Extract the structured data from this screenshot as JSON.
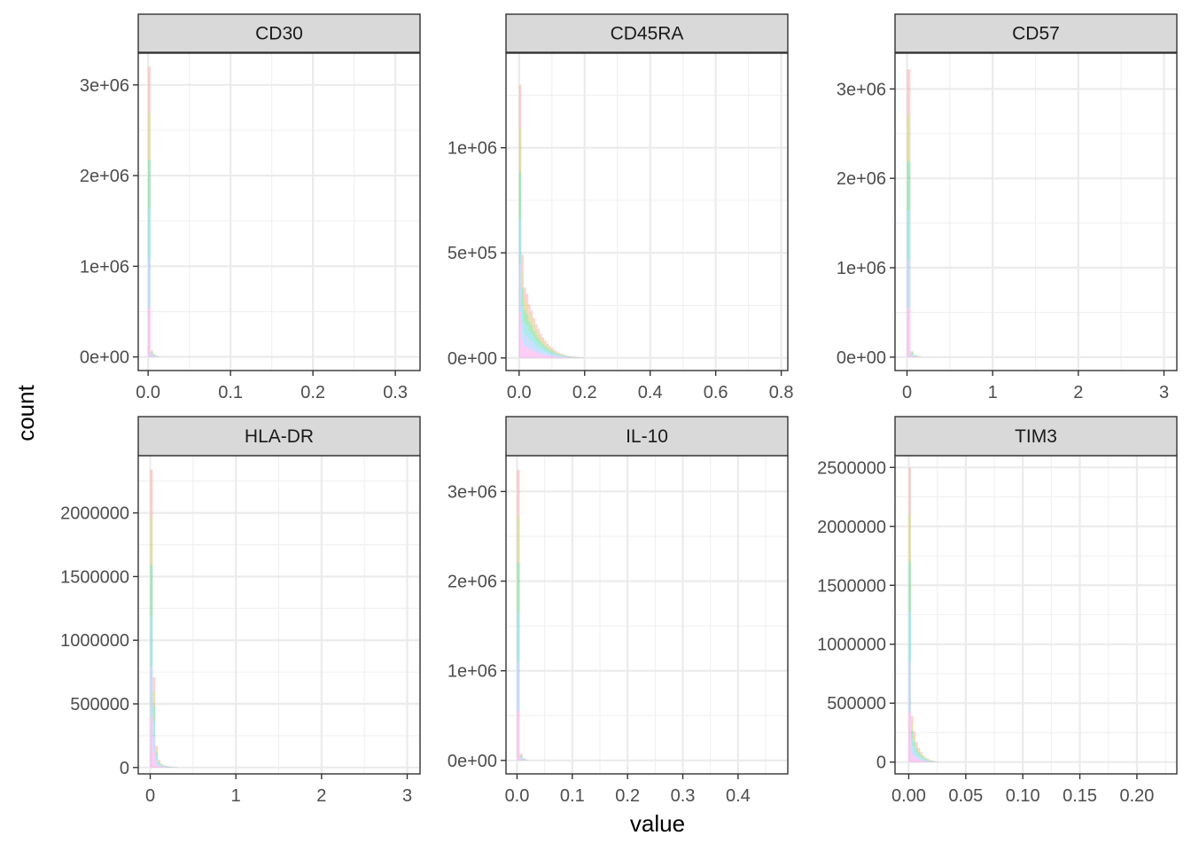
{
  "chart_data": {
    "type": "histogram",
    "xlabel": "value",
    "ylabel": "count",
    "grid": true,
    "facet_layout": "3 columns x 2 rows",
    "series_colors": [
      "#F8766D",
      "#B79F00",
      "#00BA38",
      "#00BFC4",
      "#619CFF",
      "#F564E3"
    ],
    "panels": [
      {
        "id": "cd30",
        "strip": "CD30",
        "xlim": [
          -0.012,
          0.33
        ],
        "ylim": [
          -150000,
          3350000
        ],
        "x_ticks": [
          0,
          0.1,
          0.2,
          0.3
        ],
        "x_tick_labels": [
          "0.0",
          "0.1",
          "0.2",
          "0.3"
        ],
        "y_ticks": [
          0,
          1000000,
          2000000,
          3000000
        ],
        "y_tick_labels": [
          "0e+00",
          "1e+06",
          "2e+06",
          "3e+06"
        ],
        "bins": [
          {
            "x0": 0.0,
            "x1": 0.003,
            "total": 3200000
          },
          {
            "x0": 0.003,
            "x1": 0.006,
            "total": 70000
          },
          {
            "x0": 0.006,
            "x1": 0.009,
            "total": 35000
          },
          {
            "x0": 0.009,
            "x1": 0.012,
            "total": 15000
          },
          {
            "x0": 0.012,
            "x1": 0.015,
            "total": 7000
          }
        ]
      },
      {
        "id": "cd45ra",
        "strip": "CD45RA",
        "xlim": [
          -0.04,
          0.82
        ],
        "ylim": [
          -60000,
          1450000
        ],
        "x_ticks": [
          0,
          0.2,
          0.4,
          0.6,
          0.8
        ],
        "x_tick_labels": [
          "0.0",
          "0.2",
          "0.4",
          "0.6",
          "0.8"
        ],
        "y_ticks": [
          0,
          500000,
          1000000
        ],
        "y_tick_labels": [
          "0e+00",
          "5e+05",
          "1e+06"
        ],
        "bins": [
          {
            "x0": 0.0,
            "x1": 0.007,
            "total": 1300000
          },
          {
            "x0": 0.007,
            "x1": 0.014,
            "total": 490000
          },
          {
            "x0": 0.014,
            "x1": 0.021,
            "total": 335000
          },
          {
            "x0": 0.021,
            "x1": 0.028,
            "total": 305000
          },
          {
            "x0": 0.028,
            "x1": 0.035,
            "total": 255000
          },
          {
            "x0": 0.035,
            "x1": 0.042,
            "total": 225000
          },
          {
            "x0": 0.042,
            "x1": 0.049,
            "total": 190000
          },
          {
            "x0": 0.049,
            "x1": 0.056,
            "total": 160000
          },
          {
            "x0": 0.056,
            "x1": 0.063,
            "total": 138000
          },
          {
            "x0": 0.063,
            "x1": 0.07,
            "total": 115000
          },
          {
            "x0": 0.07,
            "x1": 0.077,
            "total": 98000
          },
          {
            "x0": 0.077,
            "x1": 0.084,
            "total": 82000
          },
          {
            "x0": 0.084,
            "x1": 0.091,
            "total": 68000
          },
          {
            "x0": 0.091,
            "x1": 0.098,
            "total": 56000
          },
          {
            "x0": 0.098,
            "x1": 0.105,
            "total": 46000
          },
          {
            "x0": 0.105,
            "x1": 0.112,
            "total": 38000
          },
          {
            "x0": 0.112,
            "x1": 0.119,
            "total": 31000
          },
          {
            "x0": 0.119,
            "x1": 0.126,
            "total": 25000
          },
          {
            "x0": 0.126,
            "x1": 0.133,
            "total": 20000
          },
          {
            "x0": 0.133,
            "x1": 0.14,
            "total": 16000
          },
          {
            "x0": 0.14,
            "x1": 0.147,
            "total": 13000
          },
          {
            "x0": 0.147,
            "x1": 0.154,
            "total": 10500
          },
          {
            "x0": 0.154,
            "x1": 0.161,
            "total": 8500
          },
          {
            "x0": 0.161,
            "x1": 0.168,
            "total": 7000
          },
          {
            "x0": 0.168,
            "x1": 0.175,
            "total": 5500
          },
          {
            "x0": 0.175,
            "x1": 0.182,
            "total": 4500
          },
          {
            "x0": 0.182,
            "x1": 0.189,
            "total": 3500
          },
          {
            "x0": 0.189,
            "x1": 0.196,
            "total": 2800
          }
        ]
      },
      {
        "id": "cd57",
        "strip": "CD57",
        "xlim": [
          -0.14,
          3.15
        ],
        "ylim": [
          -150000,
          3400000
        ],
        "x_ticks": [
          0,
          1,
          2,
          3
        ],
        "x_tick_labels": [
          "0",
          "1",
          "2",
          "3"
        ],
        "y_ticks": [
          0,
          1000000,
          2000000,
          3000000
        ],
        "y_tick_labels": [
          "0e+00",
          "1e+06",
          "2e+06",
          "3e+06"
        ],
        "bins": [
          {
            "x0": 0.0,
            "x1": 0.04,
            "total": 3220000
          },
          {
            "x0": 0.04,
            "x1": 0.08,
            "total": 65000
          },
          {
            "x0": 0.08,
            "x1": 0.12,
            "total": 22000
          },
          {
            "x0": 0.12,
            "x1": 0.16,
            "total": 9000
          }
        ]
      },
      {
        "id": "hla-dr",
        "strip": "HLA-DR",
        "xlim": [
          -0.14,
          3.15
        ],
        "ylim": [
          -50000,
          2450000
        ],
        "x_ticks": [
          0,
          1,
          2,
          3
        ],
        "x_tick_labels": [
          "0",
          "1",
          "2",
          "3"
        ],
        "y_ticks": [
          0,
          500000,
          1000000,
          1500000,
          2000000
        ],
        "y_tick_labels": [
          "0",
          "500000",
          "1000000",
          "1500000",
          "2000000"
        ],
        "bins": [
          {
            "x0": 0.0,
            "x1": 0.03,
            "total": 2340000
          },
          {
            "x0": 0.03,
            "x1": 0.06,
            "total": 710000
          },
          {
            "x0": 0.06,
            "x1": 0.09,
            "total": 170000
          },
          {
            "x0": 0.09,
            "x1": 0.12,
            "total": 60000
          },
          {
            "x0": 0.12,
            "x1": 0.15,
            "total": 30000
          },
          {
            "x0": 0.15,
            "x1": 0.18,
            "total": 18000
          },
          {
            "x0": 0.18,
            "x1": 0.21,
            "total": 12000
          },
          {
            "x0": 0.21,
            "x1": 0.24,
            "total": 9000
          },
          {
            "x0": 0.24,
            "x1": 0.27,
            "total": 6500
          },
          {
            "x0": 0.27,
            "x1": 0.3,
            "total": 4500
          },
          {
            "x0": 0.3,
            "x1": 0.33,
            "total": 3000
          }
        ]
      },
      {
        "id": "il-10",
        "strip": "IL-10",
        "xlim": [
          -0.02,
          0.49
        ],
        "ylim": [
          -150000,
          3400000
        ],
        "x_ticks": [
          0,
          0.1,
          0.2,
          0.3,
          0.4
        ],
        "x_tick_labels": [
          "0.0",
          "0.1",
          "0.2",
          "0.3",
          "0.4"
        ],
        "y_ticks": [
          0,
          1000000,
          2000000,
          3000000
        ],
        "y_tick_labels": [
          "0e+00",
          "1e+06",
          "2e+06",
          "3e+06"
        ],
        "bins": [
          {
            "x0": 0.0,
            "x1": 0.005,
            "total": 3240000
          },
          {
            "x0": 0.005,
            "x1": 0.01,
            "total": 75000
          },
          {
            "x0": 0.01,
            "x1": 0.015,
            "total": 25000
          },
          {
            "x0": 0.015,
            "x1": 0.02,
            "total": 10000
          }
        ]
      },
      {
        "id": "tim3",
        "strip": "TIM3",
        "xlim": [
          -0.012,
          0.235
        ],
        "ylim": [
          -100000,
          2600000
        ],
        "x_ticks": [
          0,
          0.05,
          0.1,
          0.15,
          0.2
        ],
        "x_tick_labels": [
          "0.00",
          "0.05",
          "0.10",
          "0.15",
          "0.20"
        ],
        "y_ticks": [
          0,
          500000,
          1000000,
          1500000,
          2000000,
          2500000
        ],
        "y_tick_labels": [
          "0",
          "500000",
          "1000000",
          "1500000",
          "2000000",
          "2500000"
        ],
        "bins": [
          {
            "x0": 0.0,
            "x1": 0.002,
            "total": 2500000
          },
          {
            "x0": 0.002,
            "x1": 0.004,
            "total": 390000
          },
          {
            "x0": 0.004,
            "x1": 0.006,
            "total": 260000
          },
          {
            "x0": 0.006,
            "x1": 0.008,
            "total": 170000
          },
          {
            "x0": 0.008,
            "x1": 0.01,
            "total": 120000
          },
          {
            "x0": 0.01,
            "x1": 0.012,
            "total": 85000
          },
          {
            "x0": 0.012,
            "x1": 0.014,
            "total": 58000
          },
          {
            "x0": 0.014,
            "x1": 0.016,
            "total": 40000
          },
          {
            "x0": 0.016,
            "x1": 0.018,
            "total": 28000
          },
          {
            "x0": 0.018,
            "x1": 0.02,
            "total": 19000
          },
          {
            "x0": 0.02,
            "x1": 0.022,
            "total": 13000
          },
          {
            "x0": 0.022,
            "x1": 0.024,
            "total": 8000
          },
          {
            "x0": 0.024,
            "x1": 0.026,
            "total": 5000
          }
        ]
      }
    ]
  }
}
